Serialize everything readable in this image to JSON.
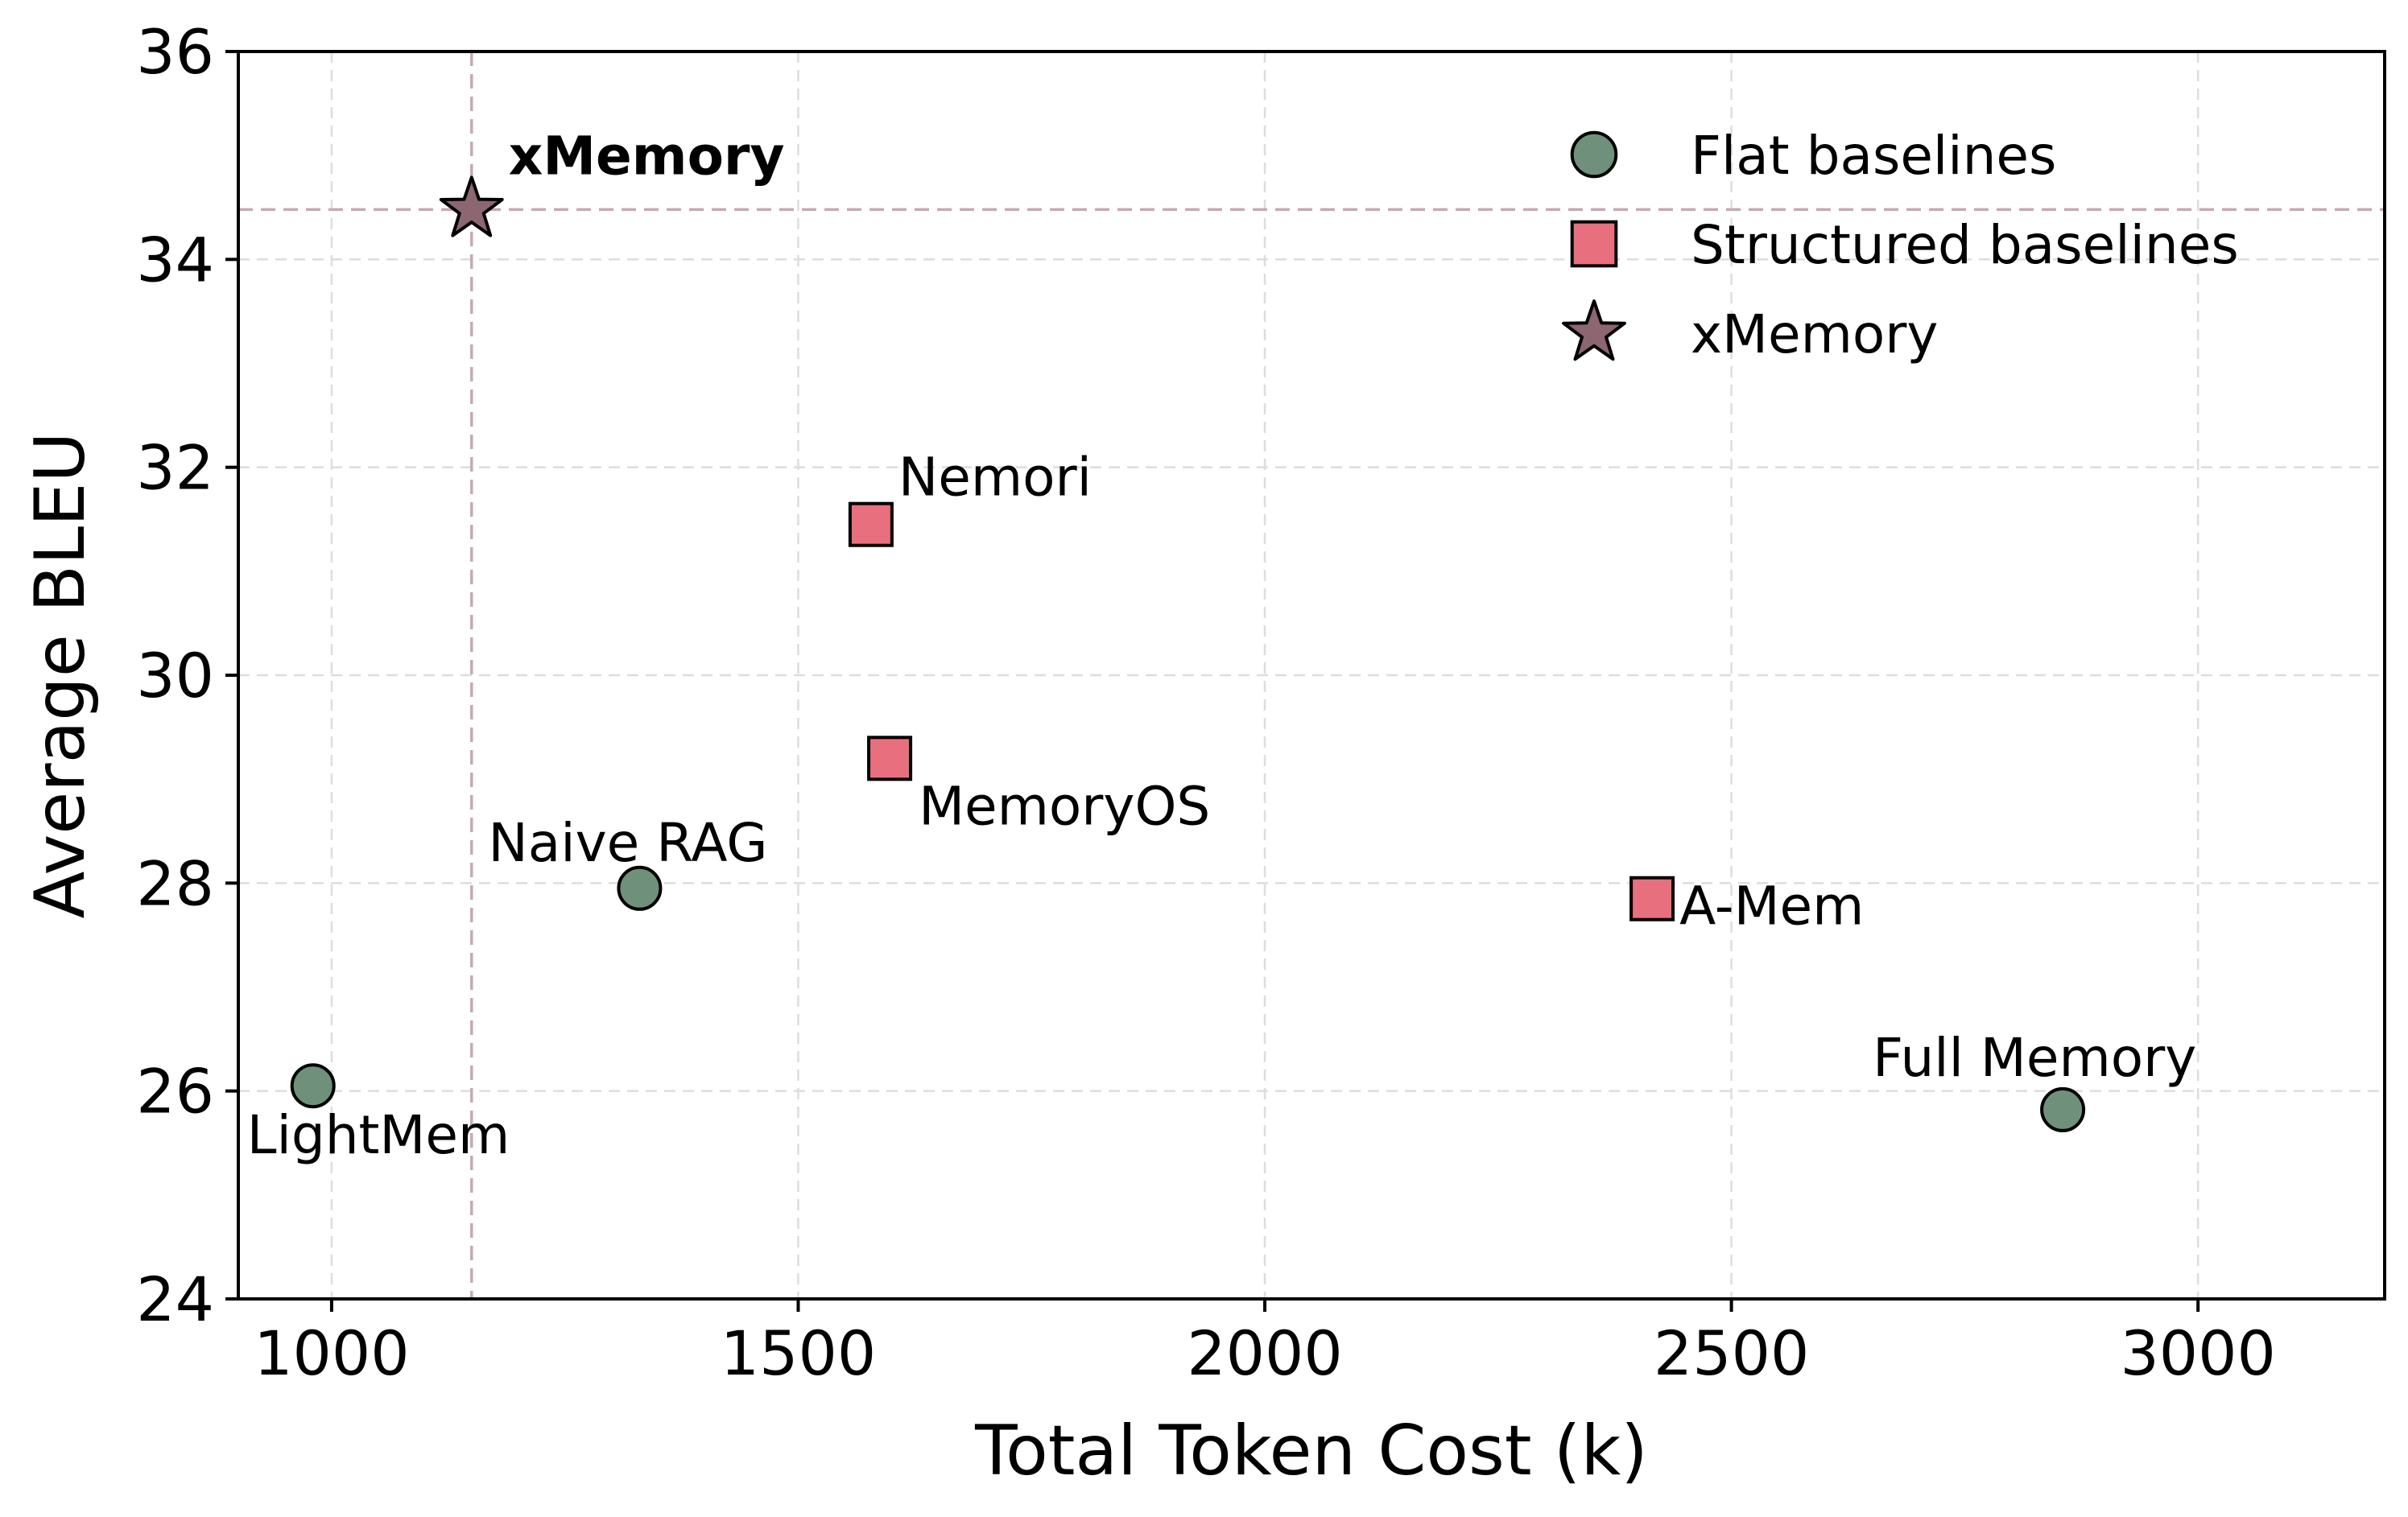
{
  "chart_data": {
    "type": "scatter",
    "xlabel": "Total Token Cost (k)",
    "ylabel": "Average BLEU",
    "xlim": [
      900,
      3200
    ],
    "ylim": [
      24,
      36
    ],
    "xticks": [
      1000,
      1500,
      2000,
      2500,
      3000
    ],
    "yticks": [
      24,
      26,
      28,
      30,
      32,
      34,
      36
    ],
    "grid": true,
    "legend_position": "top-right",
    "reference_lines": {
      "x": 1150,
      "y": 34.48,
      "color": "#c8a8b4"
    },
    "series": [
      {
        "name": "Flat baselines",
        "marker": "circle",
        "color": "#6f917c",
        "points": [
          {
            "label": "LightMem",
            "x": 980,
            "y": 26.05
          },
          {
            "label": "Naive RAG",
            "x": 1330,
            "y": 27.95
          },
          {
            "label": "Full Memory",
            "x": 2855,
            "y": 25.82
          }
        ]
      },
      {
        "name": "Structured baselines",
        "marker": "square",
        "color": "#e8707e",
        "points": [
          {
            "label": "Nemori",
            "x": 1578,
            "y": 31.45
          },
          {
            "label": "MemoryOS",
            "x": 1598,
            "y": 29.2
          },
          {
            "label": "A-Mem",
            "x": 2415,
            "y": 27.85
          }
        ]
      },
      {
        "name": "xMemory",
        "marker": "star",
        "color": "#8c6670",
        "points": [
          {
            "label": "xMemory",
            "x": 1150,
            "y": 34.48,
            "bold": true
          }
        ]
      }
    ]
  }
}
